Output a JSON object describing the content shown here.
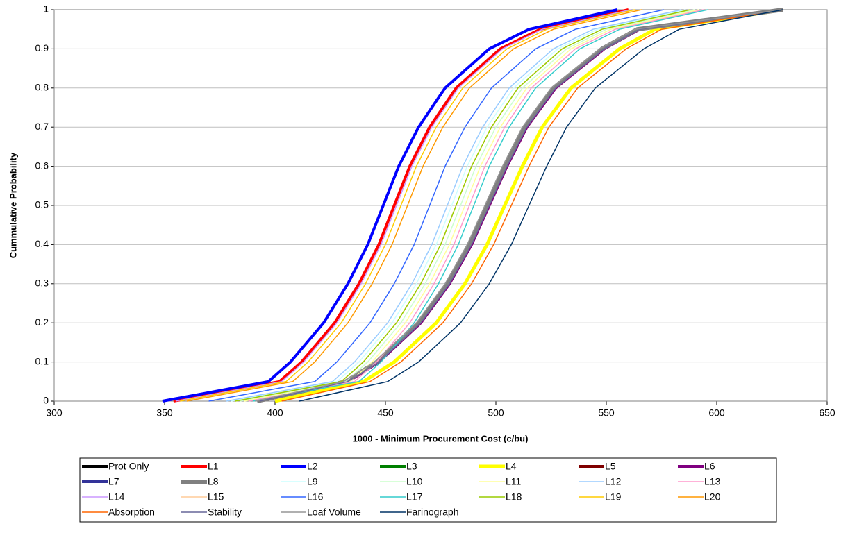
{
  "chart_data": {
    "type": "line",
    "x_label": "1000 - Minimum Procurement Cost (c/bu)",
    "y_label": "Cummulative Probability",
    "xlim": [
      300,
      650
    ],
    "xticks": [
      300,
      350,
      400,
      450,
      500,
      550,
      600,
      650
    ],
    "ylim": [
      0,
      1
    ],
    "yticks": [
      0,
      0.1,
      0.2,
      0.3,
      0.4,
      0.5,
      0.6,
      0.7,
      0.8,
      0.9,
      1
    ],
    "grid": true,
    "legend": "bottom",
    "series": [
      {
        "name": "Prot Only",
        "color": "#000000",
        "line_width": 4,
        "x": [
          392,
          432,
          446,
          465,
          478,
          488,
          496,
          504,
          513,
          526,
          548,
          564,
          630
        ],
        "values": [
          0,
          0.05,
          0.1,
          0.2,
          0.3,
          0.4,
          0.5,
          0.6,
          0.7,
          0.8,
          0.9,
          0.95,
          1
        ]
      },
      {
        "name": "L1",
        "color": "#ff0000",
        "line_width": 4,
        "x": [
          354,
          402,
          412,
          427,
          438,
          447,
          454,
          461,
          470,
          482,
          502,
          520,
          560
        ],
        "values": [
          0,
          0.05,
          0.1,
          0.2,
          0.3,
          0.4,
          0.5,
          0.6,
          0.7,
          0.8,
          0.9,
          0.95,
          1
        ]
      },
      {
        "name": "L3",
        "color": "#008000",
        "line_width": 4,
        "x": [
          392,
          432,
          446,
          465,
          478,
          488,
          496,
          504,
          513,
          526,
          548,
          564,
          630
        ],
        "values": [
          0,
          0.05,
          0.1,
          0.2,
          0.3,
          0.4,
          0.5,
          0.6,
          0.7,
          0.8,
          0.9,
          0.95,
          1
        ]
      },
      {
        "name": "L4",
        "color": "#ffff00",
        "line_width": 5,
        "x": [
          400,
          440,
          454,
          473,
          486,
          496,
          504,
          512,
          521,
          534,
          556,
          572,
          630
        ],
        "values": [
          0,
          0.05,
          0.1,
          0.2,
          0.3,
          0.4,
          0.5,
          0.6,
          0.7,
          0.8,
          0.9,
          0.95,
          1
        ]
      },
      {
        "name": "L5",
        "color": "#800000",
        "line_width": 4,
        "x": [
          393,
          433,
          447,
          466,
          479,
          489,
          497,
          505,
          514,
          527,
          549,
          565,
          630
        ],
        "values": [
          0,
          0.05,
          0.1,
          0.2,
          0.3,
          0.4,
          0.5,
          0.6,
          0.7,
          0.8,
          0.9,
          0.95,
          1
        ]
      },
      {
        "name": "L6",
        "color": "#800080",
        "line_width": 4,
        "x": [
          393,
          433,
          447,
          466,
          479,
          489,
          497,
          505,
          514,
          527,
          549,
          565,
          630
        ],
        "values": [
          0,
          0.05,
          0.1,
          0.2,
          0.3,
          0.4,
          0.5,
          0.6,
          0.7,
          0.8,
          0.9,
          0.95,
          1
        ]
      },
      {
        "name": "L7",
        "color": "#333399",
        "line_width": 4,
        "x": [
          392,
          432,
          446,
          465,
          478,
          488,
          496,
          504,
          513,
          526,
          548,
          564,
          630
        ],
        "values": [
          0,
          0.05,
          0.1,
          0.2,
          0.3,
          0.4,
          0.5,
          0.6,
          0.7,
          0.8,
          0.9,
          0.95,
          1
        ]
      },
      {
        "name": "L8",
        "color": "#808080",
        "line_width": 6,
        "x": [
          392,
          432,
          446,
          465,
          478,
          488,
          496,
          504,
          513,
          526,
          548,
          564,
          630
        ],
        "values": [
          0,
          0.05,
          0.1,
          0.2,
          0.3,
          0.4,
          0.5,
          0.6,
          0.7,
          0.8,
          0.9,
          0.95,
          1
        ]
      },
      {
        "name": "L9",
        "color": "#ccffff",
        "line_width": 1.5,
        "x": [
          380,
          428,
          438,
          453,
          464,
          473,
          480,
          487,
          496,
          508,
          528,
          546,
          586
        ],
        "values": [
          0,
          0.05,
          0.1,
          0.2,
          0.3,
          0.4,
          0.5,
          0.6,
          0.7,
          0.8,
          0.9,
          0.95,
          1
        ]
      },
      {
        "name": "L10",
        "color": "#ccffcc",
        "line_width": 1.5,
        "x": [
          384,
          432,
          442,
          457,
          468,
          477,
          484,
          491,
          500,
          512,
          532,
          550,
          590
        ],
        "values": [
          0,
          0.05,
          0.1,
          0.2,
          0.3,
          0.4,
          0.5,
          0.6,
          0.7,
          0.8,
          0.9,
          0.95,
          1
        ]
      },
      {
        "name": "L11",
        "color": "#ffff99",
        "line_width": 1.5,
        "x": [
          386,
          434,
          444,
          459,
          470,
          479,
          486,
          493,
          502,
          514,
          534,
          552,
          592
        ],
        "values": [
          0,
          0.05,
          0.1,
          0.2,
          0.3,
          0.4,
          0.5,
          0.6,
          0.7,
          0.8,
          0.9,
          0.95,
          1
        ]
      },
      {
        "name": "L12",
        "color": "#99ccff",
        "line_width": 1.5,
        "x": [
          378,
          426,
          436,
          451,
          462,
          471,
          478,
          485,
          494,
          506,
          526,
          544,
          584
        ],
        "values": [
          0,
          0.05,
          0.1,
          0.2,
          0.3,
          0.4,
          0.5,
          0.6,
          0.7,
          0.8,
          0.9,
          0.95,
          1
        ]
      },
      {
        "name": "L13",
        "color": "#ff99cc",
        "line_width": 1.5,
        "x": [
          388,
          436,
          446,
          461,
          472,
          481,
          488,
          495,
          504,
          516,
          536,
          554,
          594
        ],
        "values": [
          0,
          0.05,
          0.1,
          0.2,
          0.3,
          0.4,
          0.5,
          0.6,
          0.7,
          0.8,
          0.9,
          0.95,
          1
        ]
      },
      {
        "name": "L14",
        "color": "#cc99ff",
        "line_width": 1.5,
        "x": [
          355,
          403,
          413,
          428,
          439,
          448,
          455,
          462,
          471,
          483,
          503,
          521,
          561
        ],
        "values": [
          0,
          0.05,
          0.1,
          0.2,
          0.3,
          0.4,
          0.5,
          0.6,
          0.7,
          0.8,
          0.9,
          0.95,
          1
        ]
      },
      {
        "name": "L15",
        "color": "#ffcc99",
        "line_width": 1.5,
        "x": [
          382,
          430,
          440,
          455,
          466,
          475,
          482,
          489,
          498,
          510,
          530,
          548,
          588
        ],
        "values": [
          0,
          0.05,
          0.1,
          0.2,
          0.3,
          0.4,
          0.5,
          0.6,
          0.7,
          0.8,
          0.9,
          0.95,
          1
        ]
      },
      {
        "name": "L16",
        "color": "#3366ff",
        "line_width": 1.5,
        "x": [
          370,
          418,
          428,
          443,
          454,
          463,
          470,
          477,
          486,
          498,
          518,
          536,
          576
        ],
        "values": [
          0,
          0.05,
          0.1,
          0.2,
          0.3,
          0.4,
          0.5,
          0.6,
          0.7,
          0.8,
          0.9,
          0.95,
          1
        ]
      },
      {
        "name": "L17",
        "color": "#33cccc",
        "line_width": 1.5,
        "x": [
          390,
          438,
          448,
          463,
          474,
          483,
          490,
          497,
          506,
          518,
          538,
          556,
          596
        ],
        "values": [
          0,
          0.05,
          0.1,
          0.2,
          0.3,
          0.4,
          0.5,
          0.6,
          0.7,
          0.8,
          0.9,
          0.95,
          1
        ]
      },
      {
        "name": "L18",
        "color": "#99cc00",
        "line_width": 1.5,
        "x": [
          382,
          430,
          440,
          455,
          466,
          475,
          482,
          489,
          498,
          510,
          530,
          548,
          588
        ],
        "values": [
          0,
          0.05,
          0.1,
          0.2,
          0.3,
          0.4,
          0.5,
          0.6,
          0.7,
          0.8,
          0.9,
          0.95,
          1
        ]
      },
      {
        "name": "L19",
        "color": "#ffcc00",
        "line_width": 1.5,
        "x": [
          357,
          405,
          415,
          430,
          441,
          450,
          457,
          464,
          473,
          485,
          505,
          523,
          563
        ],
        "values": [
          0,
          0.05,
          0.1,
          0.2,
          0.3,
          0.4,
          0.5,
          0.6,
          0.7,
          0.8,
          0.9,
          0.95,
          1
        ]
      },
      {
        "name": "L20",
        "color": "#ff9900",
        "line_width": 1.5,
        "x": [
          360,
          408,
          418,
          433,
          444,
          453,
          460,
          467,
          476,
          488,
          508,
          526,
          566
        ],
        "values": [
          0,
          0.05,
          0.1,
          0.2,
          0.3,
          0.4,
          0.5,
          0.6,
          0.7,
          0.8,
          0.9,
          0.95,
          1
        ]
      },
      {
        "name": "Absorption",
        "color": "#ff6600",
        "line_width": 1.5,
        "x": [
          403,
          443,
          457,
          476,
          489,
          499,
          507,
          515,
          524,
          537,
          559,
          575,
          630
        ],
        "values": [
          0,
          0.05,
          0.1,
          0.2,
          0.3,
          0.4,
          0.5,
          0.6,
          0.7,
          0.8,
          0.9,
          0.95,
          1
        ]
      },
      {
        "name": "Stability",
        "color": "#666699",
        "line_width": 1.5,
        "x": [
          393,
          433,
          447,
          466,
          479,
          489,
          497,
          505,
          514,
          527,
          549,
          565,
          630
        ],
        "values": [
          0,
          0.05,
          0.1,
          0.2,
          0.3,
          0.4,
          0.5,
          0.6,
          0.7,
          0.8,
          0.9,
          0.95,
          1
        ]
      },
      {
        "name": "Loaf Volume",
        "color": "#969696",
        "line_width": 1.5,
        "x": [
          391,
          431,
          445,
          464,
          477,
          487,
          495,
          503,
          512,
          525,
          547,
          563,
          630
        ],
        "values": [
          0,
          0.05,
          0.1,
          0.2,
          0.3,
          0.4,
          0.5,
          0.6,
          0.7,
          0.8,
          0.9,
          0.95,
          1
        ]
      },
      {
        "name": "Farinograph",
        "color": "#003366",
        "line_width": 1.5,
        "x": [
          411,
          451,
          465,
          484,
          497,
          507,
          515,
          523,
          532,
          545,
          567,
          583,
          630
        ],
        "values": [
          0,
          0.05,
          0.1,
          0.2,
          0.3,
          0.4,
          0.5,
          0.6,
          0.7,
          0.8,
          0.9,
          0.95,
          1
        ]
      },
      {
        "name": "L2",
        "color": "#0000ff",
        "line_width": 4,
        "x": [
          349,
          397,
          407,
          422,
          433,
          442,
          449,
          456,
          465,
          477,
          497,
          515,
          555
        ],
        "values": [
          0,
          0.05,
          0.1,
          0.2,
          0.3,
          0.4,
          0.5,
          0.6,
          0.7,
          0.8,
          0.9,
          0.95,
          1
        ]
      }
    ]
  }
}
